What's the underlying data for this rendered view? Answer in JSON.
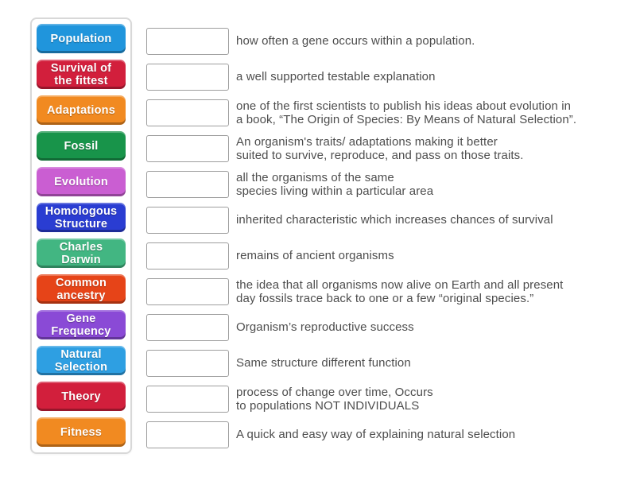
{
  "terms": [
    {
      "label": "Population",
      "color": "#2095dc"
    },
    {
      "label": "Survival of\nthe fittest",
      "color": "#d21f3c"
    },
    {
      "label": "Adaptations",
      "color": "#f18a21"
    },
    {
      "label": "Fossil",
      "color": "#18944a"
    },
    {
      "label": "Evolution",
      "color": "#ca5ed2"
    },
    {
      "label": "Homologous\nStructure",
      "color": "#2a3dd2"
    },
    {
      "label": "Charles\nDarwin",
      "color": "#42b682"
    },
    {
      "label": "Common\nancestry",
      "color": "#e64418"
    },
    {
      "label": "Gene\nFrequency",
      "color": "#8a4ad6"
    },
    {
      "label": "Natural\nSelection",
      "color": "#2e9fe2"
    },
    {
      "label": "Theory",
      "color": "#d21f3c"
    },
    {
      "label": "Fitness",
      "color": "#f18a21"
    }
  ],
  "definitions": [
    {
      "text": "how often a gene occurs within a population."
    },
    {
      "text": "a well supported testable explanation"
    },
    {
      "text": "one of the first scientists to publish his ideas about evolution in\na book, “The Origin of Species: By Means of Natural Selection”."
    },
    {
      "text": "An organism's traits/ adaptations making it better\nsuited to survive, reproduce, and pass on those traits."
    },
    {
      "text": "all the organisms of the same\nspecies living within a particular area"
    },
    {
      "text": "inherited characteristic which increases chances of survival"
    },
    {
      "text": "remains of ancient organisms"
    },
    {
      "text": "the idea that all organisms now alive on Earth and all present\nday fossils trace back to one or a few “original species.”"
    },
    {
      "text": "Organism’s reproductive success"
    },
    {
      "text": "Same structure different function"
    },
    {
      "text": "process of change over time, Occurs\nto populations NOT INDIVIDUALS"
    },
    {
      "text": "A quick and easy way of explaining natural selection"
    }
  ],
  "colors": {
    "panel_border": "#d8d8d8",
    "slot_border": "#9e9e9e",
    "definition_text": "#4d4d4d",
    "tile_text": "#ffffff"
  }
}
